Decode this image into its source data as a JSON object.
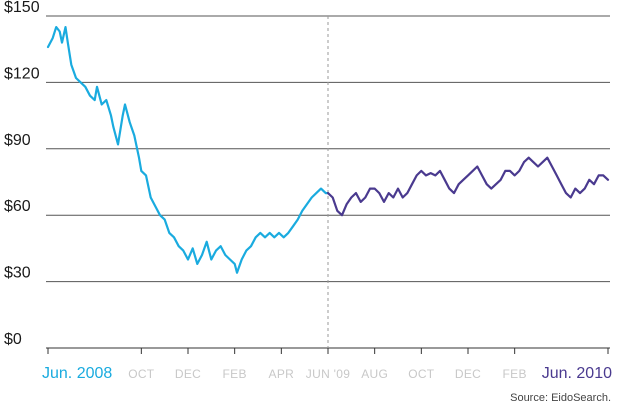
{
  "chart_data": {
    "type": "line",
    "ylim": [
      0,
      150
    ],
    "y_ticks": [
      "$0",
      "$30",
      "$60",
      "$90",
      "$120",
      "$150"
    ],
    "y_tick_values": [
      0,
      30,
      60,
      90,
      120,
      150
    ],
    "x_range": [
      0,
      24
    ],
    "x_ticks": [
      {
        "label": "Jun. 2008",
        "x": 0,
        "style": "start"
      },
      {
        "label": "OCT",
        "x": 4,
        "style": "minor"
      },
      {
        "label": "DEC",
        "x": 6,
        "style": "minor"
      },
      {
        "label": "FEB",
        "x": 8,
        "style": "minor"
      },
      {
        "label": "APR",
        "x": 10,
        "style": "minor"
      },
      {
        "label": "JUN '09",
        "x": 12,
        "style": "minor"
      },
      {
        "label": "AUG",
        "x": 14,
        "style": "minor"
      },
      {
        "label": "OCT",
        "x": 16,
        "style": "minor"
      },
      {
        "label": "DEC",
        "x": 18,
        "style": "minor"
      },
      {
        "label": "FEB",
        "x": 20,
        "style": "minor"
      },
      {
        "label": "Jun. 2010",
        "x": 24,
        "style": "end"
      }
    ],
    "divider_x": 12,
    "grid": true,
    "series": [
      {
        "color": "#1aabdf",
        "points": [
          [
            0,
            136
          ],
          [
            0.2,
            140
          ],
          [
            0.35,
            145
          ],
          [
            0.5,
            143
          ],
          [
            0.6,
            138
          ],
          [
            0.75,
            145
          ],
          [
            0.85,
            138
          ],
          [
            1.0,
            128
          ],
          [
            1.2,
            122
          ],
          [
            1.4,
            120
          ],
          [
            1.6,
            118
          ],
          [
            1.8,
            114
          ],
          [
            2.0,
            112
          ],
          [
            2.1,
            118
          ],
          [
            2.3,
            110
          ],
          [
            2.5,
            112
          ],
          [
            2.7,
            105
          ],
          [
            2.8,
            100
          ],
          [
            3.0,
            92
          ],
          [
            3.2,
            105
          ],
          [
            3.3,
            110
          ],
          [
            3.5,
            102
          ],
          [
            3.7,
            96
          ],
          [
            3.9,
            86
          ],
          [
            4.0,
            80
          ],
          [
            4.2,
            78
          ],
          [
            4.4,
            68
          ],
          [
            4.6,
            64
          ],
          [
            4.8,
            60
          ],
          [
            5.0,
            58
          ],
          [
            5.2,
            52
          ],
          [
            5.4,
            50
          ],
          [
            5.6,
            46
          ],
          [
            5.8,
            44
          ],
          [
            6.0,
            40
          ],
          [
            6.2,
            45
          ],
          [
            6.4,
            38
          ],
          [
            6.6,
            42
          ],
          [
            6.8,
            48
          ],
          [
            7.0,
            40
          ],
          [
            7.2,
            44
          ],
          [
            7.4,
            46
          ],
          [
            7.6,
            42
          ],
          [
            7.8,
            40
          ],
          [
            8.0,
            38
          ],
          [
            8.1,
            34
          ],
          [
            8.3,
            40
          ],
          [
            8.5,
            44
          ],
          [
            8.7,
            46
          ],
          [
            8.9,
            50
          ],
          [
            9.1,
            52
          ],
          [
            9.3,
            50
          ],
          [
            9.5,
            52
          ],
          [
            9.7,
            50
          ],
          [
            9.9,
            52
          ],
          [
            10.1,
            50
          ],
          [
            10.3,
            52
          ],
          [
            10.5,
            55
          ],
          [
            10.7,
            58
          ],
          [
            10.9,
            62
          ],
          [
            11.1,
            65
          ],
          [
            11.3,
            68
          ],
          [
            11.5,
            70
          ],
          [
            11.7,
            72
          ],
          [
            11.9,
            70
          ],
          [
            12.0,
            70
          ]
        ]
      },
      {
        "color": "#4a3a8f",
        "points": [
          [
            12.0,
            70
          ],
          [
            12.2,
            68
          ],
          [
            12.4,
            62
          ],
          [
            12.6,
            60
          ],
          [
            12.8,
            65
          ],
          [
            13.0,
            68
          ],
          [
            13.2,
            70
          ],
          [
            13.4,
            66
          ],
          [
            13.6,
            68
          ],
          [
            13.8,
            72
          ],
          [
            14.0,
            72
          ],
          [
            14.2,
            70
          ],
          [
            14.4,
            66
          ],
          [
            14.6,
            70
          ],
          [
            14.8,
            68
          ],
          [
            15.0,
            72
          ],
          [
            15.2,
            68
          ],
          [
            15.4,
            70
          ],
          [
            15.6,
            74
          ],
          [
            15.8,
            78
          ],
          [
            16.0,
            80
          ],
          [
            16.2,
            78
          ],
          [
            16.4,
            79
          ],
          [
            16.6,
            78
          ],
          [
            16.8,
            80
          ],
          [
            17.0,
            76
          ],
          [
            17.2,
            72
          ],
          [
            17.4,
            70
          ],
          [
            17.6,
            74
          ],
          [
            17.8,
            76
          ],
          [
            18.0,
            78
          ],
          [
            18.2,
            80
          ],
          [
            18.4,
            82
          ],
          [
            18.6,
            78
          ],
          [
            18.8,
            74
          ],
          [
            19.0,
            72
          ],
          [
            19.2,
            74
          ],
          [
            19.4,
            76
          ],
          [
            19.6,
            80
          ],
          [
            19.8,
            80
          ],
          [
            20.0,
            78
          ],
          [
            20.2,
            80
          ],
          [
            20.4,
            84
          ],
          [
            20.6,
            86
          ],
          [
            20.8,
            84
          ],
          [
            21.0,
            82
          ],
          [
            21.2,
            84
          ],
          [
            21.4,
            86
          ],
          [
            21.6,
            82
          ],
          [
            21.8,
            78
          ],
          [
            22.0,
            74
          ],
          [
            22.2,
            70
          ],
          [
            22.4,
            68
          ],
          [
            22.6,
            72
          ],
          [
            22.8,
            70
          ],
          [
            23.0,
            72
          ],
          [
            23.2,
            76
          ],
          [
            23.4,
            74
          ],
          [
            23.6,
            78
          ],
          [
            23.8,
            78
          ],
          [
            24.0,
            76
          ]
        ]
      }
    ],
    "start_label_color": "#1aabdf",
    "end_label_color": "#4a3a8f"
  },
  "source": "Source: EidoSearch."
}
